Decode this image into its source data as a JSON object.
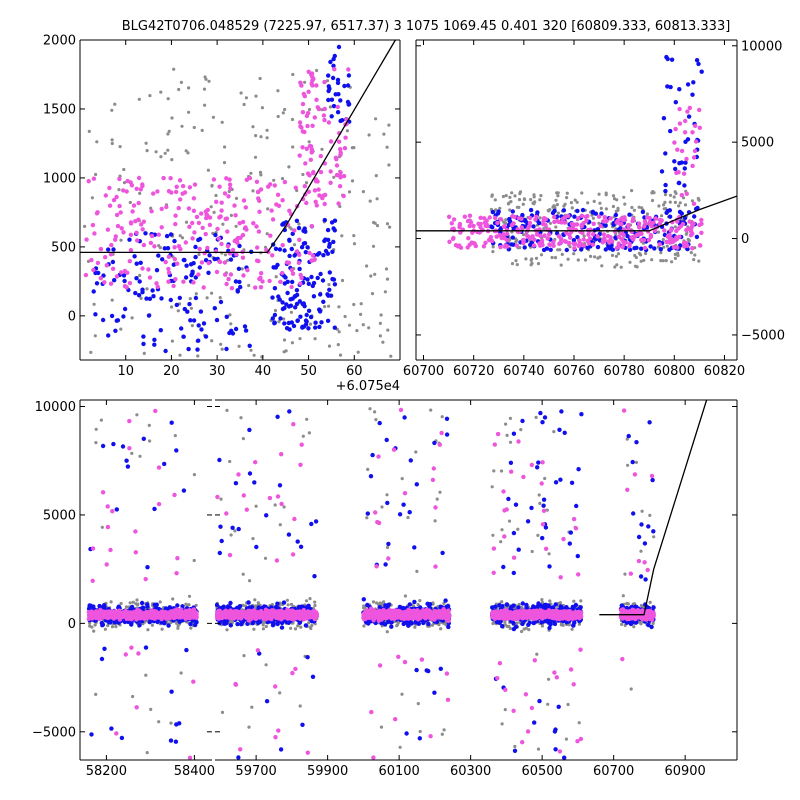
{
  "title": "BLG42T0706.048529 (7225.97, 6517.37)    3 1075 1069.45 0.401 320 [60809.333, 60813.333]",
  "colors": {
    "grey": "#8c8c8c",
    "blue": "#1010ee",
    "magenta": "#ee55dd",
    "line": "#000000"
  },
  "chart_data": [
    {
      "type": "scatter",
      "name": "zoom-panel",
      "xlim": [
        0,
        70
      ],
      "ylim": [
        -320,
        2000
      ],
      "x_offset_label": "+6.075e4",
      "xticks": [
        10,
        20,
        30,
        40,
        50,
        60
      ],
      "xtick_labels": [
        "10",
        "20",
        "30",
        "40",
        "50",
        "60"
      ],
      "yticks": [
        0,
        500,
        1000,
        1500,
        2000
      ],
      "ytick_labels": [
        "0",
        "500",
        "1000",
        "1500",
        "2000"
      ],
      "y_axis_side": "left",
      "model_line": {
        "x": [
          0,
          41,
          45,
          69
        ],
        "y": [
          460,
          460,
          650,
          2000
        ]
      },
      "series": [
        {
          "name": "grey",
          "clusters": [
            {
              "x0": 1,
              "x1": 68,
              "ymin": -300,
              "ymax": 1800,
              "n": 260
            }
          ]
        },
        {
          "name": "blue",
          "clusters": [
            {
              "x0": 3,
              "x1": 38,
              "ymin": -260,
              "ymax": 600,
              "n": 140
            },
            {
              "x0": 42,
              "x1": 56,
              "ymin": -100,
              "ymax": 700,
              "n": 140
            },
            {
              "x0": 54,
              "x1": 59,
              "ymin": 1400,
              "ymax": 2000,
              "n": 30
            }
          ]
        },
        {
          "name": "magenta",
          "clusters": [
            {
              "x0": 1,
              "x1": 52,
              "ymin": 200,
              "ymax": 1000,
              "n": 260
            },
            {
              "x0": 48,
              "x1": 59,
              "ymin": 800,
              "ymax": 1800,
              "n": 90
            }
          ]
        }
      ]
    },
    {
      "type": "scatter",
      "name": "season-panel",
      "xlim": [
        60697,
        60825
      ],
      "ylim": [
        -6300,
        10300
      ],
      "xticks": [
        60700,
        60720,
        60740,
        60760,
        60780,
        60800,
        60820
      ],
      "xtick_labels": [
        "60700",
        "60720",
        "60740",
        "60760",
        "60780",
        "60800",
        "60820"
      ],
      "yticks": [
        -5000,
        0,
        5000,
        10000
      ],
      "ytick_labels": [
        "−5000",
        "0",
        "5000",
        "10000"
      ],
      "y_axis_side": "right",
      "model_line": {
        "x": [
          60697,
          60790,
          60810,
          60825
        ],
        "y": [
          400,
          400,
          1500,
          2200
        ]
      },
      "series": [
        {
          "name": "grey",
          "clusters": [
            {
              "x0": 60727,
              "x1": 60810,
              "ymin": -1500,
              "ymax": 2500,
              "n": 320
            }
          ]
        },
        {
          "name": "blue",
          "clusters": [
            {
              "x0": 60727,
              "x1": 60810,
              "ymin": -600,
              "ymax": 1500,
              "n": 220
            },
            {
              "x0": 60795,
              "x1": 60811,
              "ymin": 1000,
              "ymax": 10000,
              "n": 40
            }
          ]
        },
        {
          "name": "magenta",
          "clusters": [
            {
              "x0": 60710,
              "x1": 60811,
              "ymin": -500,
              "ymax": 1200,
              "n": 320
            },
            {
              "x0": 60800,
              "x1": 60811,
              "ymin": 1500,
              "ymax": 7000,
              "n": 25
            }
          ]
        }
      ]
    },
    {
      "type": "scatter",
      "name": "full-lightcurve-left",
      "xlim": [
        58140,
        58440
      ],
      "ylim": [
        -6300,
        10300
      ],
      "xticks": [
        58200,
        58400
      ],
      "xtick_labels": [
        "58200",
        "58400"
      ],
      "yticks": [
        -5000,
        0,
        5000,
        10000
      ],
      "ytick_labels": [
        "−5000",
        "0",
        "5000",
        "10000"
      ],
      "y_axis_side": "left",
      "seasons": [
        {
          "x0": 58160,
          "x1": 58405
        }
      ]
    },
    {
      "type": "scatter",
      "name": "full-lightcurve-right",
      "xlim": [
        59585,
        61045
      ],
      "ylim": [
        -6300,
        10300
      ],
      "xticks": [
        59700,
        59900,
        60100,
        60300,
        60500,
        60700,
        60900
      ],
      "xtick_labels": [
        "59700",
        "59900",
        "60100",
        "60300",
        "60500",
        "60700",
        "60900"
      ],
      "yticks": [
        -5000,
        0,
        5000,
        10000
      ],
      "y_axis_side": "none",
      "seasons": [
        {
          "x0": 59590,
          "x1": 59870
        },
        {
          "x0": 60000,
          "x1": 60240
        },
        {
          "x0": 60360,
          "x1": 60610
        },
        {
          "x0": 60720,
          "x1": 60812
        }
      ],
      "model_line": {
        "x": [
          60660,
          60785,
          60812,
          60960
        ],
        "y": [
          400,
          400,
          2500,
          10300
        ]
      }
    }
  ]
}
